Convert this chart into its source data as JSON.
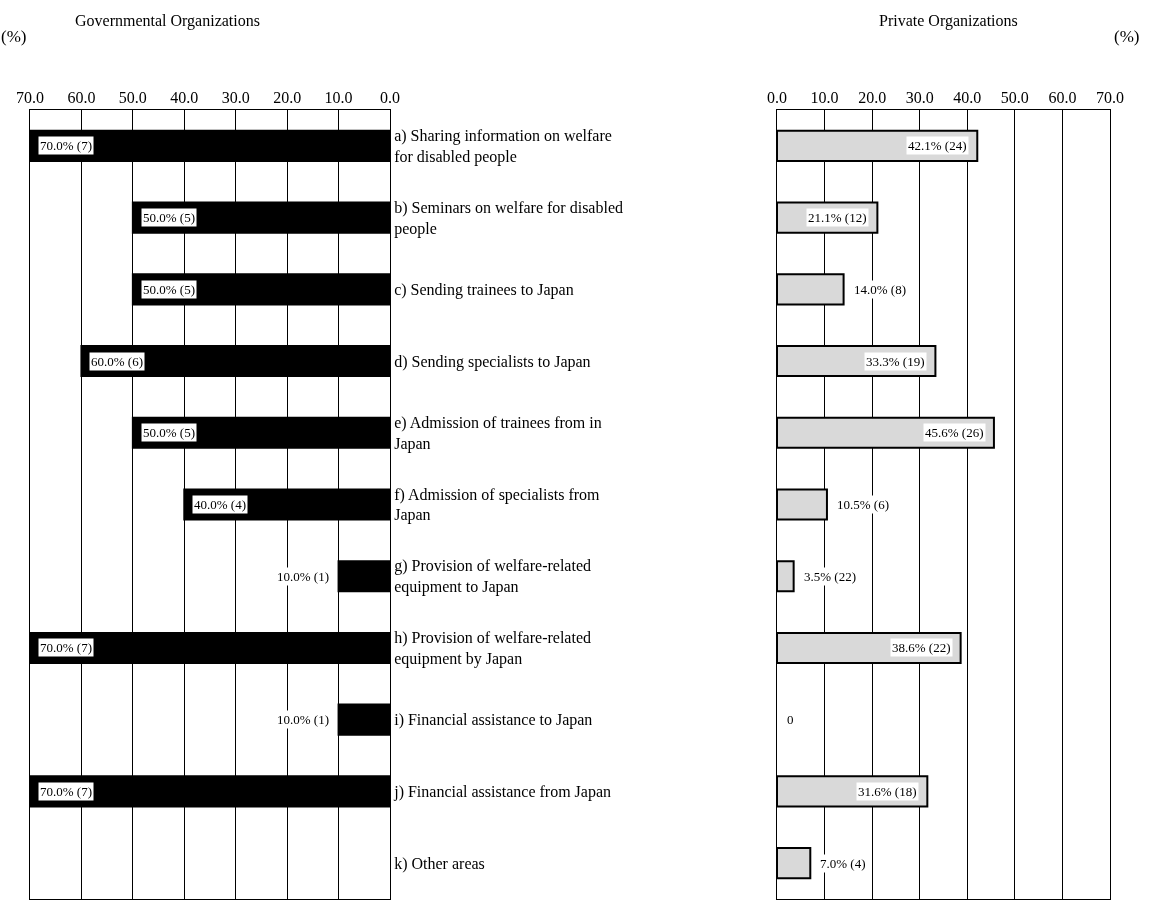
{
  "chart_data": [
    {
      "type": "bar",
      "orientation": "horizontal",
      "title": "Governmental Organizations",
      "xlabel": "(%)",
      "categories": [
        "a) Sharing information on welfare for disabled people",
        "b) Seminars on welfare for disabled people",
        "c) Sending trainees to Japan",
        "d) Sending specialists to Japan",
        "e) Admission of trainees from in Japan",
        "f) Admission of specialists from Japan",
        "g) Provision of welfare-related equipment to Japan",
        "h) Provision of welfare-related equipment by Japan",
        "i) Financial assistance to Japan",
        "j) Financial assistance from Japan",
        "k) Other areas"
      ],
      "values": [
        70,
        50,
        50,
        60,
        50,
        40,
        10,
        70,
        10,
        70,
        0
      ],
      "value_labels": [
        "70.0% (7)",
        "50.0% (5)",
        "50.0% (5)",
        "60.0% (6)",
        "50.0% (5)",
        "40.0% (4)",
        "10.0% (1)",
        "70.0% (7)",
        "10.0% (1)",
        "70.0% (7)",
        null
      ],
      "color": "#000000",
      "xlim": [
        70,
        0
      ],
      "xticks": [
        {
          "value": 70,
          "label": "70.0"
        },
        {
          "value": 60,
          "label": "60.0"
        },
        {
          "value": 50,
          "label": "50.0"
        },
        {
          "value": 40,
          "label": "40.0"
        },
        {
          "value": 30,
          "label": "30.0"
        },
        {
          "value": 20,
          "label": "20.0"
        },
        {
          "value": 10,
          "label": "10.0"
        },
        {
          "value": 0,
          "label": "0.0"
        }
      ],
      "grid": "x",
      "legend": false
    },
    {
      "type": "bar",
      "orientation": "horizontal",
      "title": "Private Organizations",
      "xlabel": "(%)",
      "categories": [
        null,
        null,
        null,
        null,
        null,
        null,
        null,
        null,
        null,
        null,
        null
      ],
      "values": [
        42.1,
        21.1,
        14.0,
        33.3,
        45.6,
        10.5,
        3.5,
        38.6,
        0,
        31.6,
        7.0
      ],
      "value_labels": [
        "42.1% (24)",
        "21.1% (12)",
        "14.0% (8)",
        "33.3% (19)",
        "45.6% (26)",
        "10.5% (6)",
        "3.5% (22)",
        "38.6% (22)",
        "0",
        "31.6% (18)",
        "7.0% (4)"
      ],
      "color": "#d9d9d9",
      "xlim": [
        0,
        70
      ],
      "xticks": [
        {
          "value": 0,
          "label": "0.0"
        },
        {
          "value": 10,
          "label": "10.0"
        },
        {
          "value": 20,
          "label": "20.0"
        },
        {
          "value": 30,
          "label": "30.0"
        },
        {
          "value": 40,
          "label": "40.0"
        },
        {
          "value": 50,
          "label": "50.0"
        },
        {
          "value": 60,
          "label": "60.0"
        },
        {
          "value": 70,
          "label": "70.0"
        }
      ],
      "grid": "x",
      "legend": false
    }
  ]
}
